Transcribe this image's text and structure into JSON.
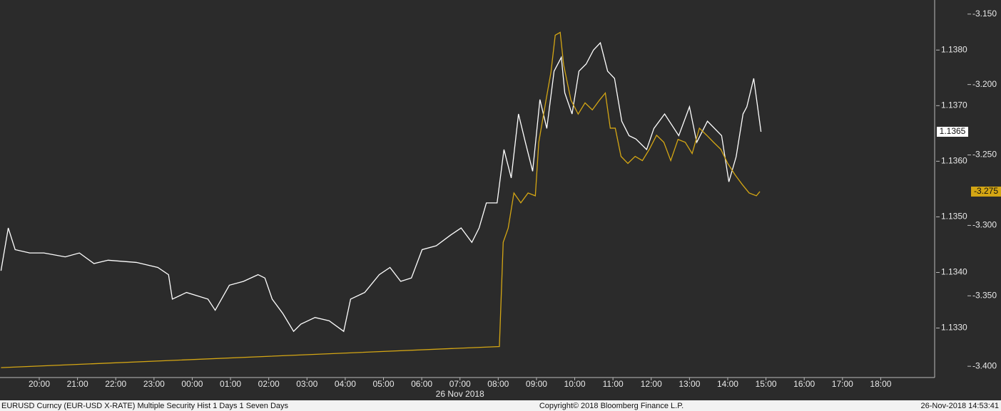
{
  "chart_data": {
    "type": "line",
    "footer_left": "EURUSD Curncy (EUR-USD X-RATE) Multiple Security Hist   1 Days 1 Seven Days",
    "footer_center": "Copyright© 2018 Bloomberg Finance L.P.",
    "footer_right": "26-Nov-2018 14:53:41",
    "date_label": "26 Nov 2018",
    "xlim": [
      0,
      24.41
    ],
    "xticks": [
      {
        "value": 1,
        "label": "20:00"
      },
      {
        "value": 2,
        "label": "21:00"
      },
      {
        "value": 3,
        "label": "22:00"
      },
      {
        "value": 4,
        "label": "23:00"
      },
      {
        "value": 5,
        "label": "00:00"
      },
      {
        "value": 6,
        "label": "01:00"
      },
      {
        "value": 7,
        "label": "02:00"
      },
      {
        "value": 8,
        "label": "03:00"
      },
      {
        "value": 9,
        "label": "04:00"
      },
      {
        "value": 10,
        "label": "05:00"
      },
      {
        "value": 11,
        "label": "06:00"
      },
      {
        "value": 12,
        "label": "07:00"
      },
      {
        "value": 13,
        "label": "08:00"
      },
      {
        "value": 14,
        "label": "09:00"
      },
      {
        "value": 15,
        "label": "10:00"
      },
      {
        "value": 16,
        "label": "11:00"
      },
      {
        "value": 17,
        "label": "12:00"
      },
      {
        "value": 18,
        "label": "13:00"
      },
      {
        "value": 19,
        "label": "14:00"
      },
      {
        "value": 20,
        "label": "15:00"
      },
      {
        "value": 21,
        "label": "16:00"
      },
      {
        "value": 22,
        "label": "17:00"
      },
      {
        "value": 23,
        "label": "18:00"
      }
    ],
    "ylim": [
      1.13211,
      1.1389
    ],
    "yticks": [
      {
        "value": 1.133,
        "label": "1.1330"
      },
      {
        "value": 1.134,
        "label": "1.1340"
      },
      {
        "value": 1.135,
        "label": "1.1350"
      },
      {
        "value": 1.136,
        "label": "1.1360"
      },
      {
        "value": 1.137,
        "label": "1.1370"
      },
      {
        "value": 1.138,
        "label": "1.1380"
      }
    ],
    "y2lim": [
      -3.408,
      -3.14
    ],
    "y2ticks": [
      {
        "value": -3.4,
        "label": "-3.400"
      },
      {
        "value": -3.35,
        "label": "-3.350"
      },
      {
        "value": -3.3,
        "label": "-3.300"
      },
      {
        "value": -3.25,
        "label": "-3.250"
      },
      {
        "value": -3.2,
        "label": "-3.200"
      },
      {
        "value": -3.15,
        "label": "-3.150"
      }
    ],
    "series": [
      {
        "color": "#ffffff",
        "last_label": "1.1365",
        "x": [
          0,
          0.19,
          0.37,
          0.75,
          1.12,
          1.68,
          2.05,
          2.43,
          2.8,
          3.54,
          4.1,
          4.38,
          4.48,
          4.85,
          5.41,
          5.6,
          5.97,
          6.34,
          6.72,
          6.9,
          7.09,
          7.37,
          7.65,
          7.84,
          8.21,
          8.58,
          8.96,
          9.14,
          9.51,
          9.89,
          10.17,
          10.45,
          10.73,
          11.01,
          11.38,
          11.75,
          12.03,
          12.31,
          12.5,
          12.69,
          12.97,
          13.15,
          13.34,
          13.53,
          13.71,
          13.9,
          14.09,
          14.27,
          14.46,
          14.65,
          14.74,
          14.93,
          15.11,
          15.3,
          15.49,
          15.67,
          15.86,
          16.04,
          16.23,
          16.42,
          16.6,
          16.88,
          17.07,
          17.35,
          17.72,
          18.0,
          18.19,
          18.47,
          18.84,
          19.03,
          19.22,
          19.4,
          19.5,
          19.68,
          19.87
        ],
        "values": [
          1.13403,
          1.1348,
          1.13441,
          1.13435,
          1.13435,
          1.13428,
          1.13435,
          1.13416,
          1.13422,
          1.13418,
          1.13409,
          1.13396,
          1.13352,
          1.13364,
          1.13352,
          1.13332,
          1.13377,
          1.13384,
          1.13396,
          1.1339,
          1.13352,
          1.13326,
          1.13294,
          1.13307,
          1.13319,
          1.13313,
          1.13294,
          1.13352,
          1.13364,
          1.13396,
          1.13409,
          1.13384,
          1.1339,
          1.13441,
          1.13448,
          1.13467,
          1.1348,
          1.13454,
          1.1348,
          1.13525,
          1.13525,
          1.13621,
          1.1357,
          1.13685,
          1.13634,
          1.13582,
          1.13711,
          1.13659,
          1.13762,
          1.13787,
          1.13723,
          1.13685,
          1.13762,
          1.13775,
          1.138,
          1.13813,
          1.13762,
          1.13749,
          1.13672,
          1.13646,
          1.1364,
          1.13621,
          1.13659,
          1.13685,
          1.13646,
          1.13698,
          1.13634,
          1.13672,
          1.13646,
          1.13563,
          1.13608,
          1.13685,
          1.13698,
          1.13749,
          1.13653
        ]
      },
      {
        "color": "#d4a614",
        "axis": "y2",
        "last_label": "-3.275",
        "x": [
          0,
          13.03,
          13.13,
          13.26,
          13.41,
          13.59,
          13.78,
          13.97,
          14.06,
          14.25,
          14.38,
          14.49,
          14.62,
          14.71,
          14.9,
          15.09,
          15.27,
          15.46,
          15.65,
          15.8,
          15.93,
          16.06,
          16.21,
          16.39,
          16.58,
          16.77,
          16.95,
          17.14,
          17.33,
          17.51,
          17.7,
          17.89,
          18.07,
          18.26,
          18.45,
          18.63,
          18.82,
          19.0,
          19.19,
          19.38,
          19.56,
          19.75,
          19.84
        ],
        "values": [
          -3.401,
          -3.386,
          -3.312,
          -3.302,
          -3.277,
          -3.284,
          -3.277,
          -3.279,
          -3.241,
          -3.211,
          -3.191,
          -3.165,
          -3.163,
          -3.186,
          -3.211,
          -3.221,
          -3.213,
          -3.218,
          -3.211,
          -3.206,
          -3.231,
          -3.231,
          -3.251,
          -3.256,
          -3.251,
          -3.254,
          -3.246,
          -3.236,
          -3.241,
          -3.254,
          -3.239,
          -3.241,
          -3.249,
          -3.231,
          -3.236,
          -3.241,
          -3.246,
          -3.256,
          -3.264,
          -3.271,
          -3.277,
          -3.279,
          -3.276
        ]
      }
    ]
  }
}
